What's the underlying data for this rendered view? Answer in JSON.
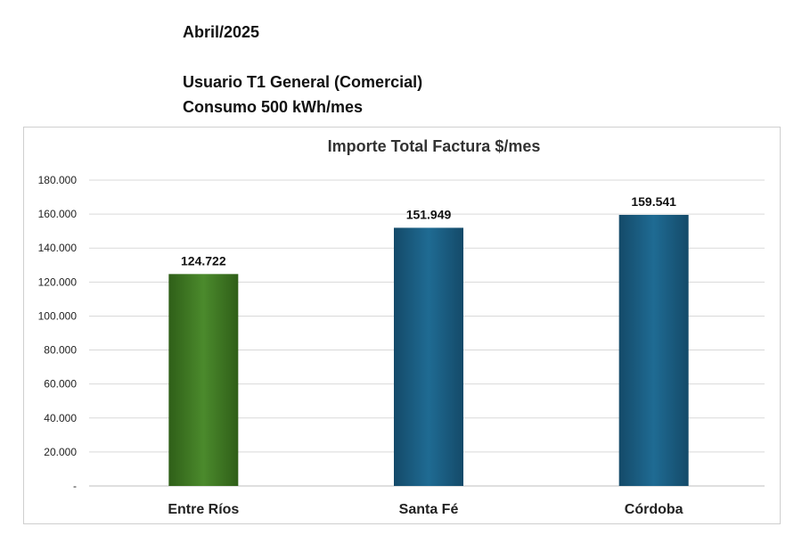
{
  "header": {
    "date": "Abril/2025",
    "user_type": "Usuario T1 General (Comercial)",
    "consumption": "Consumo  500 kWh/mes"
  },
  "chart_data": {
    "type": "bar",
    "title": "Importe Total  Factura $/mes",
    "xlabel": "",
    "ylabel": "",
    "categories": [
      "Entre Ríos",
      "Santa Fé",
      "Córdoba"
    ],
    "values": [
      124722,
      151949,
      159541
    ],
    "value_labels": [
      "124.722",
      "151.949",
      "159.541"
    ],
    "bar_colors": [
      "#3f7a24",
      "#1a5f85",
      "#1a5f85"
    ],
    "ylim": [
      0,
      180000
    ],
    "yticks": [
      0,
      20000,
      40000,
      60000,
      80000,
      100000,
      120000,
      140000,
      160000,
      180000
    ],
    "ytick_labels": [
      "-",
      "20.000",
      "40.000",
      "60.000",
      "80.000",
      "100.000",
      "120.000",
      "140.000",
      "160.000",
      "180.000"
    ],
    "grid": true,
    "legend": "none"
  }
}
